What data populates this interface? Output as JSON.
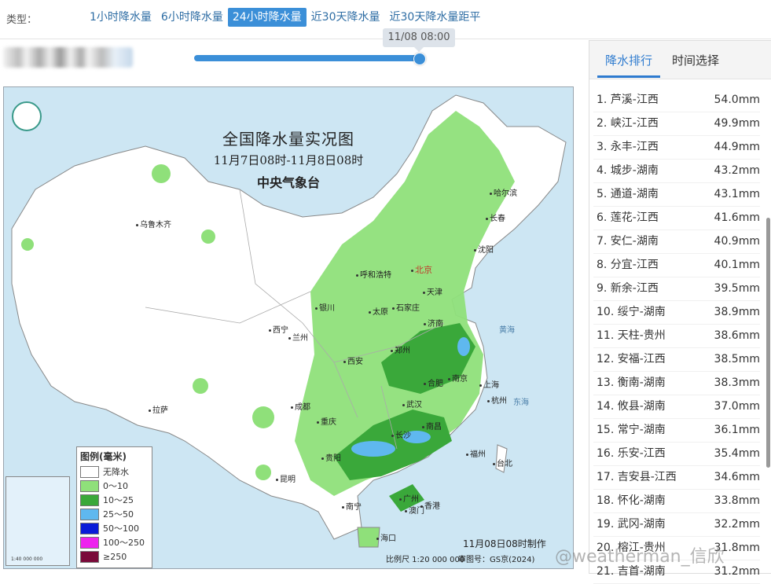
{
  "typebar": {
    "label": "类型：",
    "tabs": [
      {
        "label": "1小时降水量",
        "active": false
      },
      {
        "label": "6小时降水量",
        "active": false
      },
      {
        "label": "24小时降水量",
        "active": true
      },
      {
        "label": "近30天降水量",
        "active": false
      },
      {
        "label": "近30天降水量距平",
        "active": false
      }
    ]
  },
  "timeline": {
    "current": "11/08 08:00",
    "progress": 1.0
  },
  "map": {
    "title": "全国降水量实况图",
    "period": "11月7日08时-11月8日08时",
    "org": "中央气象台",
    "made": "11月08日08时制作",
    "scale": "比例尺 1:20 000 000",
    "approval": "审图号：GS京(2024)",
    "inset_scale": "1:40 000 000",
    "cities": [
      {
        "name": "乌鲁木齐",
        "capital": false
      },
      {
        "name": "哈尔滨",
        "capital": false
      },
      {
        "name": "长春",
        "capital": false
      },
      {
        "name": "沈阳",
        "capital": false
      },
      {
        "name": "呼和浩特",
        "capital": false
      },
      {
        "name": "北京",
        "capital": true
      },
      {
        "name": "天津",
        "capital": false
      },
      {
        "name": "银川",
        "capital": false
      },
      {
        "name": "太原",
        "capital": false
      },
      {
        "name": "石家庄",
        "capital": false
      },
      {
        "name": "济南",
        "capital": false
      },
      {
        "name": "西宁",
        "capital": false
      },
      {
        "name": "兰州",
        "capital": false
      },
      {
        "name": "郑州",
        "capital": false
      },
      {
        "name": "西安",
        "capital": false
      },
      {
        "name": "合肥",
        "capital": false
      },
      {
        "name": "南京",
        "capital": false
      },
      {
        "name": "上海",
        "capital": false
      },
      {
        "name": "拉萨",
        "capital": false
      },
      {
        "name": "成都",
        "capital": false
      },
      {
        "name": "武汉",
        "capital": false
      },
      {
        "name": "杭州",
        "capital": false
      },
      {
        "name": "重庆",
        "capital": false
      },
      {
        "name": "长沙",
        "capital": false
      },
      {
        "name": "南昌",
        "capital": false
      },
      {
        "name": "贵阳",
        "capital": false
      },
      {
        "name": "福州",
        "capital": false
      },
      {
        "name": "台北",
        "capital": false
      },
      {
        "name": "昆明",
        "capital": false
      },
      {
        "name": "南宁",
        "capital": false
      },
      {
        "name": "广州",
        "capital": false
      },
      {
        "name": "香港",
        "capital": false
      },
      {
        "name": "澳门",
        "capital": false
      },
      {
        "name": "海口",
        "capital": false
      }
    ],
    "seas": [
      "黄海",
      "东海"
    ],
    "legend": {
      "title": "图例(毫米)",
      "items": [
        {
          "label": "无降水",
          "color": "#ffffff"
        },
        {
          "label": "0～10",
          "color": "#8fe07a"
        },
        {
          "label": "10～25",
          "color": "#3aa83a"
        },
        {
          "label": "25～50",
          "color": "#5fb8ef"
        },
        {
          "label": "50～100",
          "color": "#0a1cd8"
        },
        {
          "label": "100～250",
          "color": "#ee22ee"
        },
        {
          "label": "≥250",
          "color": "#7a0a3a"
        }
      ]
    }
  },
  "ranking": {
    "tabs": [
      {
        "label": "降水排行",
        "active": true
      },
      {
        "label": "时间选择",
        "active": false
      }
    ],
    "items": [
      {
        "name": "1. 芦溪-江西",
        "value": "54.0mm"
      },
      {
        "name": "2. 峡江-江西",
        "value": "49.9mm"
      },
      {
        "name": "3. 永丰-江西",
        "value": "44.9mm"
      },
      {
        "name": "4. 城步-湖南",
        "value": "43.2mm"
      },
      {
        "name": "5. 通道-湖南",
        "value": "43.1mm"
      },
      {
        "name": "6. 莲花-江西",
        "value": "41.6mm"
      },
      {
        "name": "7. 安仁-湖南",
        "value": "40.9mm"
      },
      {
        "name": "8. 分宜-江西",
        "value": "40.1mm"
      },
      {
        "name": "9. 新余-江西",
        "value": "39.5mm"
      },
      {
        "name": "10. 绥宁-湖南",
        "value": "38.9mm"
      },
      {
        "name": "11. 天柱-贵州",
        "value": "38.6mm"
      },
      {
        "name": "12. 安福-江西",
        "value": "38.5mm"
      },
      {
        "name": "13. 衡南-湖南",
        "value": "38.3mm"
      },
      {
        "name": "14. 攸县-湖南",
        "value": "37.0mm"
      },
      {
        "name": "15. 常宁-湖南",
        "value": "36.1mm"
      },
      {
        "name": "16. 乐安-江西",
        "value": "35.4mm"
      },
      {
        "name": "17. 吉安县-江西",
        "value": "34.6mm"
      },
      {
        "name": "18. 怀化-湖南",
        "value": "33.8mm"
      },
      {
        "name": "19. 武冈-湖南",
        "value": "32.2mm"
      },
      {
        "name": "20. 榕江-贵州",
        "value": "31.8mm"
      },
      {
        "name": "21. 吉首-湖南",
        "value": "31.2mm"
      }
    ]
  },
  "watermark": "@weatherman_信欣"
}
